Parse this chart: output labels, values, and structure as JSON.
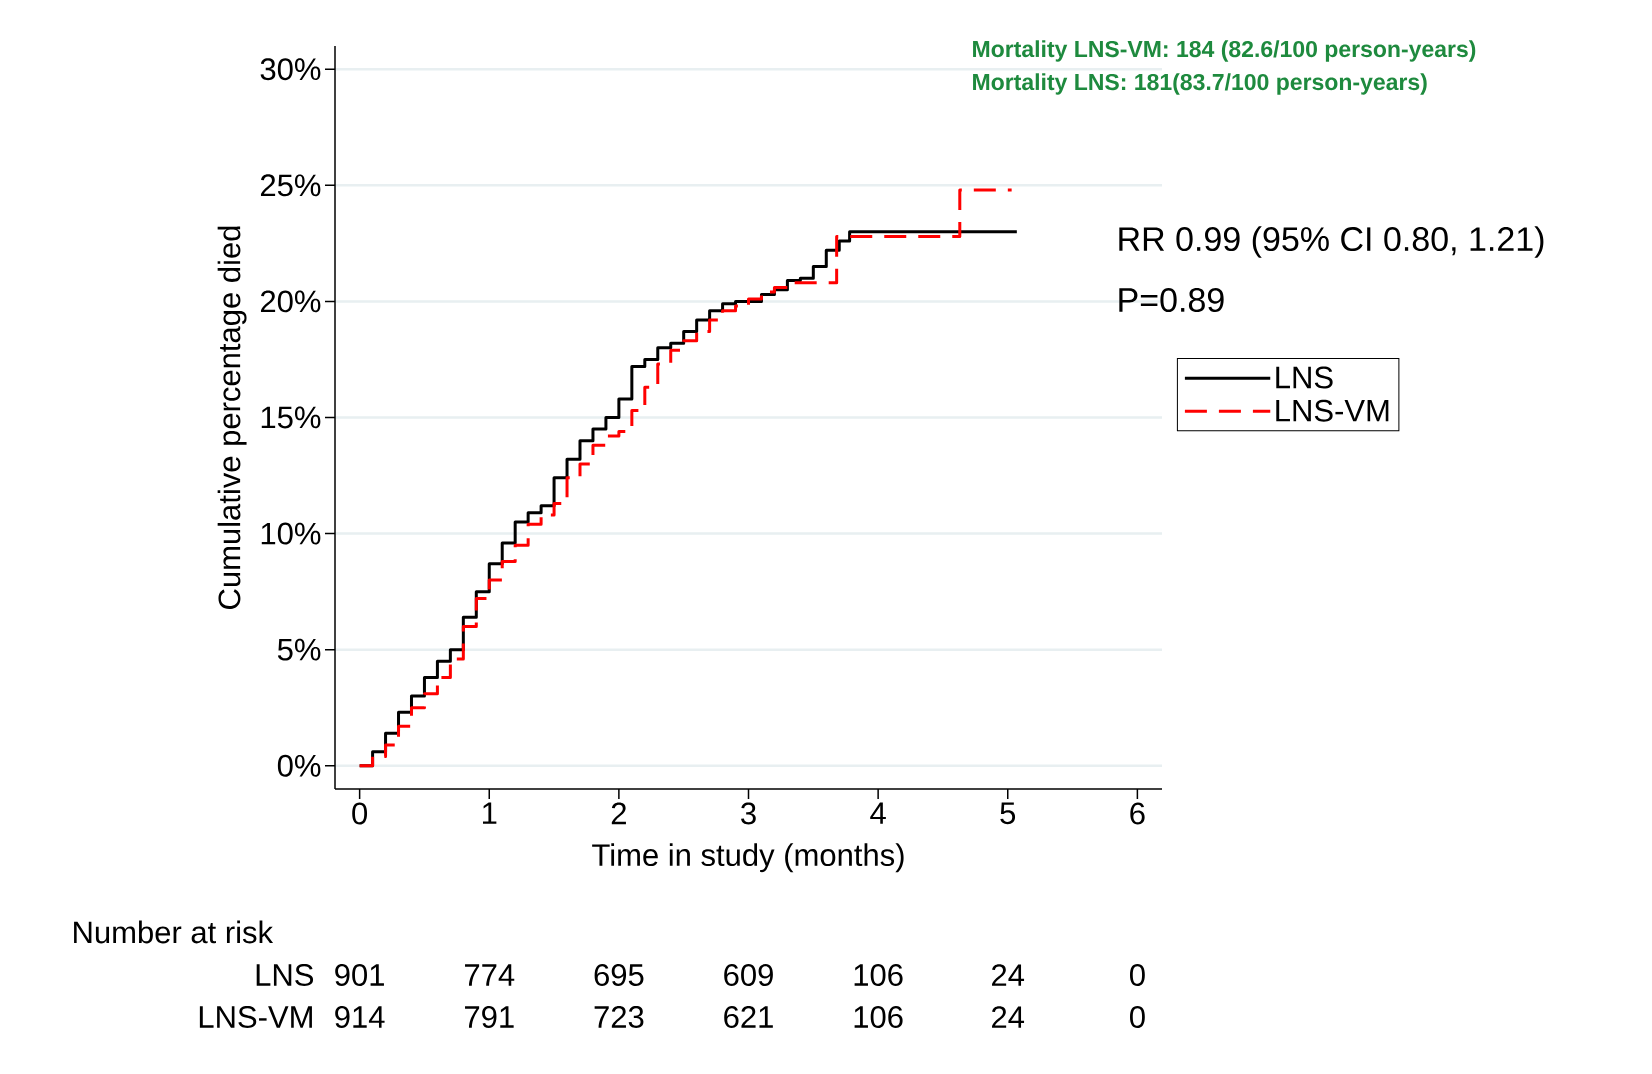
{
  "chart_data": {
    "type": "step",
    "xlabel": "Time in study (months)",
    "ylabel": "Cumulative percentage died",
    "xlim": [
      -0.19,
      6.19
    ],
    "ylim": [
      -1,
      31
    ],
    "xticks": [
      0,
      1,
      2,
      3,
      4,
      5,
      6
    ],
    "yticks": [
      {
        "value": 0,
        "label": "0%"
      },
      {
        "value": 5,
        "label": "5%"
      },
      {
        "value": 10,
        "label": "10%"
      },
      {
        "value": 15,
        "label": "15%"
      },
      {
        "value": 20,
        "label": "20%"
      },
      {
        "value": 25,
        "label": "25%"
      },
      {
        "value": 30,
        "label": "30%"
      }
    ],
    "grid": "y",
    "legend": "right",
    "series": [
      {
        "name": "LNS",
        "color": "#000000",
        "line_style": "solid",
        "x": [
          0,
          0.1,
          0.2,
          0.3,
          0.4,
          0.5,
          0.6,
          0.7,
          0.8,
          0.9,
          1.0,
          1.1,
          1.2,
          1.3,
          1.4,
          1.5,
          1.6,
          1.7,
          1.8,
          1.9,
          2.0,
          2.1,
          2.2,
          2.3,
          2.4,
          2.5,
          2.6,
          2.7,
          2.8,
          2.9,
          3.0,
          3.1,
          3.2,
          3.3,
          3.4,
          3.5,
          3.6,
          3.7,
          3.78,
          5.07
        ],
        "values": [
          0,
          0.6,
          1.4,
          2.3,
          3.0,
          3.8,
          4.5,
          5.0,
          6.4,
          7.5,
          8.7,
          9.6,
          10.5,
          10.9,
          11.2,
          12.4,
          13.2,
          14.0,
          14.5,
          15.0,
          15.8,
          17.2,
          17.5,
          18.0,
          18.2,
          18.7,
          19.2,
          19.6,
          19.9,
          20.0,
          20.0,
          20.3,
          20.5,
          20.9,
          21.0,
          21.5,
          22.2,
          22.6,
          23.0,
          23.0
        ]
      },
      {
        "name": "LNS-VM",
        "color": "#ff0000",
        "line_style": "dashed",
        "x": [
          0,
          0.1,
          0.2,
          0.3,
          0.4,
          0.5,
          0.6,
          0.7,
          0.8,
          0.9,
          1.0,
          1.1,
          1.2,
          1.3,
          1.4,
          1.5,
          1.6,
          1.7,
          1.8,
          1.9,
          2.0,
          2.1,
          2.2,
          2.3,
          2.4,
          2.5,
          2.6,
          2.7,
          2.8,
          2.9,
          3.0,
          3.1,
          3.2,
          3.3,
          3.68,
          4.63,
          5.03
        ],
        "values": [
          0,
          0.4,
          0.9,
          1.7,
          2.5,
          3.1,
          3.8,
          4.6,
          6.0,
          7.2,
          8.0,
          8.8,
          9.5,
          10.4,
          10.8,
          11.3,
          12.4,
          13.0,
          13.8,
          14.2,
          14.4,
          15.3,
          16.3,
          17.3,
          17.9,
          18.3,
          18.7,
          19.2,
          19.6,
          19.8,
          20.1,
          20.4,
          20.6,
          20.8,
          22.8,
          24.8,
          24.8
        ]
      }
    ],
    "annotations": [
      "Mortality LNS-VM: 184 (82.6/100 person-years)",
      "Mortality LNS: 181(83.7/100 person-years)",
      "RR 0.99 (95% CI 0.80, 1.21)",
      "P=0.89",
      "Number at risk",
      "LNS",
      "901",
      "774",
      "695",
      "609",
      "106",
      "24",
      "0",
      "LNS-VM",
      "914",
      "791",
      "723",
      "621",
      "106",
      "24",
      "0"
    ]
  }
}
